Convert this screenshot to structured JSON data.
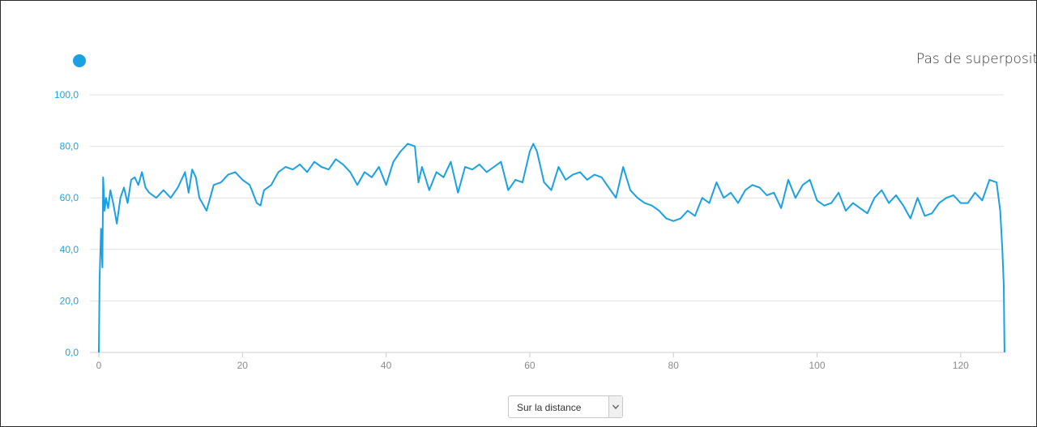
{
  "legend": {
    "overlay_label": "Pas de superposition"
  },
  "select": {
    "value": "Sur la distance"
  },
  "colors": {
    "series": "#1ba1e2",
    "grid": "#e0e0e0",
    "axis": "#cccccc"
  },
  "chart_data": {
    "type": "line",
    "xlim": [
      0,
      126
    ],
    "ylim": [
      0,
      100
    ],
    "x_ticks": [
      "0",
      "20",
      "40",
      "60",
      "80",
      "100",
      "120"
    ],
    "y_ticks": [
      "0,0",
      "20,0",
      "40,0",
      "60,0",
      "80,0",
      "100,0"
    ],
    "grid": true,
    "series": [
      {
        "x": [
          0,
          0.1,
          0.3,
          0.5,
          0.6,
          0.8,
          1,
          1.3,
          1.6,
          2,
          2.5,
          3,
          3.5,
          4,
          4.5,
          5,
          5.5,
          6,
          6.5,
          7,
          8,
          9,
          10,
          11,
          12,
          12.5,
          13,
          13.5,
          14,
          15,
          16,
          17,
          18,
          19,
          20,
          21,
          22,
          22.5,
          23,
          24,
          25,
          26,
          27,
          28,
          29,
          30,
          31,
          32,
          33,
          34,
          35,
          36,
          37,
          38,
          39,
          40,
          41,
          42,
          43,
          44,
          44.5,
          45,
          46,
          47,
          48,
          49,
          50,
          51,
          52,
          53,
          54,
          55,
          56,
          57,
          58,
          59,
          60,
          60.5,
          61,
          62,
          63,
          64,
          65,
          66,
          67,
          68,
          69,
          70,
          71,
          72,
          73,
          74,
          75,
          76,
          77,
          78,
          79,
          80,
          81,
          82,
          83,
          84,
          85,
          86,
          87,
          88,
          89,
          90,
          91,
          92,
          93,
          94,
          95,
          96,
          97,
          98,
          99,
          100,
          101,
          102,
          103,
          104,
          105,
          106,
          107,
          108,
          109,
          110,
          111,
          112,
          113,
          114,
          115,
          116,
          117,
          118,
          119,
          120,
          121,
          122,
          123,
          124,
          125,
          125.5,
          125.8,
          126,
          126.1
        ],
        "y": [
          0,
          28,
          48,
          33,
          68,
          55,
          60,
          56,
          63,
          58,
          50,
          60,
          64,
          58,
          67,
          68,
          65,
          70,
          64,
          62,
          60,
          63,
          60,
          64,
          70,
          62,
          71,
          68,
          60,
          55,
          65,
          66,
          69,
          70,
          67,
          65,
          58,
          57,
          63,
          65,
          70,
          72,
          71,
          73,
          70,
          74,
          72,
          71,
          75,
          73,
          70,
          65,
          70,
          68,
          72,
          65,
          74,
          78,
          81,
          80,
          66,
          72,
          63,
          70,
          68,
          74,
          62,
          72,
          71,
          73,
          70,
          72,
          74,
          63,
          67,
          66,
          78,
          81,
          78,
          66,
          63,
          72,
          67,
          69,
          70,
          67,
          69,
          68,
          64,
          60,
          72,
          63,
          60,
          58,
          57,
          55,
          52,
          51,
          52,
          55,
          53,
          60,
          58,
          66,
          60,
          62,
          58,
          63,
          65,
          64,
          61,
          62,
          56,
          67,
          60,
          65,
          67,
          59,
          57,
          58,
          62,
          55,
          58,
          56,
          54,
          60,
          63,
          58,
          61,
          57,
          52,
          60,
          53,
          54,
          58,
          60,
          61,
          58,
          58,
          62,
          59,
          67,
          66,
          55,
          40,
          26,
          0
        ]
      }
    ]
  }
}
